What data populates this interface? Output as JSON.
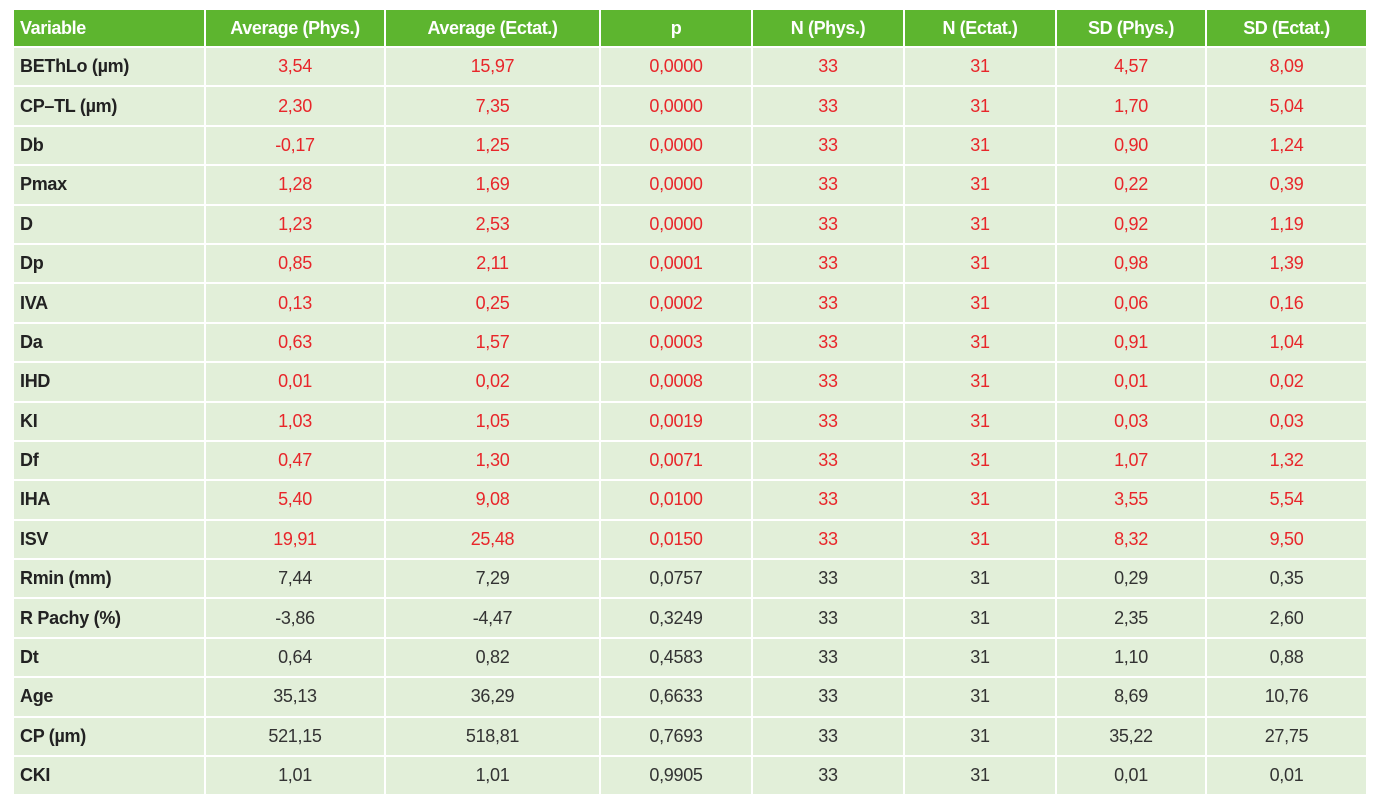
{
  "table": {
    "header_color": "#5db52f",
    "body_color": "#e2efd9",
    "highlight_color": "#e8262a",
    "header": [
      "Variable",
      "Average (Phys.)",
      "Average (Ectat.)",
      "p",
      "N (Phys.)",
      "N (Ectat.)",
      "SD (Phys.)",
      "SD (Ectat.)"
    ],
    "rows": [
      {
        "highlight": true,
        "cells": [
          "BEThLo (µm)",
          "3,54",
          "15,97",
          "0,0000",
          "33",
          "31",
          "4,57",
          "8,09"
        ]
      },
      {
        "highlight": true,
        "cells": [
          "CP–TL (µm)",
          "2,30",
          "7,35",
          "0,0000",
          "33",
          "31",
          "1,70",
          "5,04"
        ]
      },
      {
        "highlight": true,
        "cells": [
          "Db",
          "-0,17",
          "1,25",
          "0,0000",
          "33",
          "31",
          "0,90",
          "1,24"
        ]
      },
      {
        "highlight": true,
        "cells": [
          "Pmax",
          "1,28",
          "1,69",
          "0,0000",
          "33",
          "31",
          "0,22",
          "0,39"
        ]
      },
      {
        "highlight": true,
        "cells": [
          "D",
          "1,23",
          "2,53",
          "0,0000",
          "33",
          "31",
          "0,92",
          "1,19"
        ]
      },
      {
        "highlight": true,
        "cells": [
          "Dp",
          "0,85",
          "2,11",
          "0,0001",
          "33",
          "31",
          "0,98",
          "1,39"
        ]
      },
      {
        "highlight": true,
        "cells": [
          "IVA",
          "0,13",
          "0,25",
          "0,0002",
          "33",
          "31",
          "0,06",
          "0,16"
        ]
      },
      {
        "highlight": true,
        "cells": [
          "Da",
          "0,63",
          "1,57",
          "0,0003",
          "33",
          "31",
          "0,91",
          "1,04"
        ]
      },
      {
        "highlight": true,
        "cells": [
          "IHD",
          "0,01",
          "0,02",
          "0,0008",
          "33",
          "31",
          "0,01",
          "0,02"
        ]
      },
      {
        "highlight": true,
        "cells": [
          "KI",
          "1,03",
          "1,05",
          "0,0019",
          "33",
          "31",
          "0,03",
          "0,03"
        ]
      },
      {
        "highlight": true,
        "cells": [
          "Df",
          "0,47",
          "1,30",
          "0,0071",
          "33",
          "31",
          "1,07",
          "1,32"
        ]
      },
      {
        "highlight": true,
        "cells": [
          "IHA",
          "5,40",
          "9,08",
          "0,0100",
          "33",
          "31",
          "3,55",
          "5,54"
        ]
      },
      {
        "highlight": true,
        "cells": [
          "ISV",
          "19,91",
          "25,48",
          "0,0150",
          "33",
          "31",
          "8,32",
          "9,50"
        ]
      },
      {
        "highlight": false,
        "cells": [
          "Rmin (mm)",
          "7,44",
          "7,29",
          "0,0757",
          "33",
          "31",
          "0,29",
          "0,35"
        ]
      },
      {
        "highlight": false,
        "cells": [
          "R Pachy (%)",
          "-3,86",
          "-4,47",
          "0,3249",
          "33",
          "31",
          "2,35",
          "2,60"
        ]
      },
      {
        "highlight": false,
        "cells": [
          "Dt",
          "0,64",
          "0,82",
          "0,4583",
          "33",
          "31",
          "1,10",
          "0,88"
        ]
      },
      {
        "highlight": false,
        "cells": [
          "Age",
          "35,13",
          "36,29",
          "0,6633",
          "33",
          "31",
          "8,69",
          "10,76"
        ]
      },
      {
        "highlight": false,
        "cells": [
          "CP (µm)",
          "521,15",
          "518,81",
          "0,7693",
          "33",
          "31",
          "35,22",
          "27,75"
        ]
      },
      {
        "highlight": false,
        "cells": [
          "CKI",
          "1,01",
          "1,01",
          "0,9905",
          "33",
          "31",
          "0,01",
          "0,01"
        ]
      }
    ]
  }
}
